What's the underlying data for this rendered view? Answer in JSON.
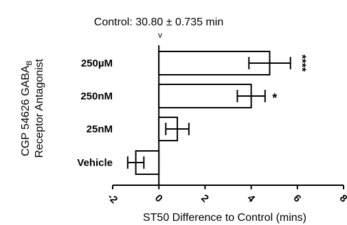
{
  "chart_data": {
    "type": "bar",
    "orientation": "horizontal",
    "title": "Control: 30.80 ± 0.735 min",
    "control_marker": "v",
    "xlabel": "ST50 Difference to Control (mins)",
    "ylabel_line1": "CGP 54626 GABA",
    "ylabel_line1_sub": "B",
    "ylabel_line2": "Receptor Antagonist",
    "xlim": [
      -2,
      8
    ],
    "xticks": [
      -2,
      0,
      2,
      4,
      6,
      8
    ],
    "xtick_labels": [
      "-2",
      "0",
      "2",
      "4",
      "6",
      "8"
    ],
    "categories": [
      "250µM",
      "250nM",
      "25nM",
      "Vehicle"
    ],
    "values": [
      4.8,
      4.0,
      0.8,
      -1.0
    ],
    "errors": [
      0.9,
      0.6,
      0.5,
      0.35
    ],
    "significance": [
      "****",
      "*",
      "",
      ""
    ],
    "bar_fill": "#ffffff",
    "bar_stroke": "#000000",
    "grid": false,
    "legend": "none"
  }
}
